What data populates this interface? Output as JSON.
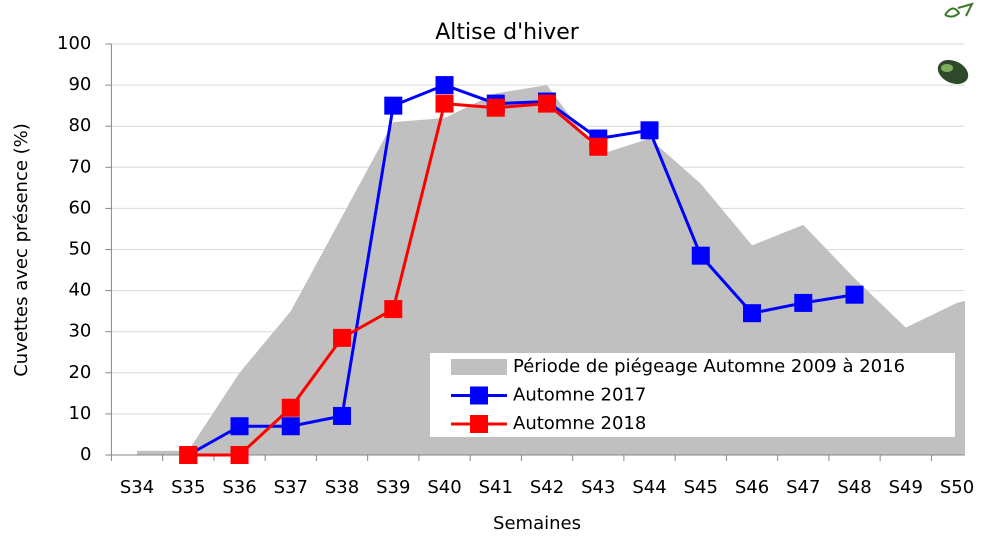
{
  "chart_data": {
    "type": "area-line",
    "title": "Altise d'hiver",
    "x_label": "Semaines",
    "y_label": "Cuvettes avec présence (%)",
    "categories": [
      "S34",
      "S35",
      "S36",
      "S37",
      "S38",
      "S39",
      "S40",
      "S41",
      "S42",
      "S43",
      "S44",
      "S45",
      "S46",
      "S47",
      "S48",
      "S49",
      "S50"
    ],
    "series": [
      {
        "name": "Période de piégeage Automne 2009 à 2016",
        "kind": "area",
        "color": "#c0c0c0",
        "values": [
          1,
          1,
          20,
          35,
          58,
          81,
          82,
          88,
          90,
          73,
          77,
          66,
          51,
          56,
          43,
          31,
          37
        ]
      },
      {
        "name": "Automne 2017",
        "kind": "line",
        "color": "#0000ff",
        "values": [
          null,
          0,
          7,
          7,
          9.5,
          85,
          90,
          85.5,
          86,
          77,
          79,
          48.5,
          34.5,
          37,
          39,
          null,
          null
        ]
      },
      {
        "name": "Automne 2018",
        "kind": "line",
        "color": "#ff0000",
        "values": [
          null,
          0,
          0,
          11.5,
          28.5,
          35.5,
          85.5,
          84.5,
          85.5,
          75,
          null,
          null,
          null,
          null,
          null,
          null,
          null
        ]
      }
    ],
    "ylim": [
      0,
      100
    ],
    "yticks": [
      0,
      10,
      20,
      30,
      40,
      50,
      60,
      70,
      80,
      90,
      100
    ],
    "grid": true,
    "legend": "bottom-right"
  }
}
